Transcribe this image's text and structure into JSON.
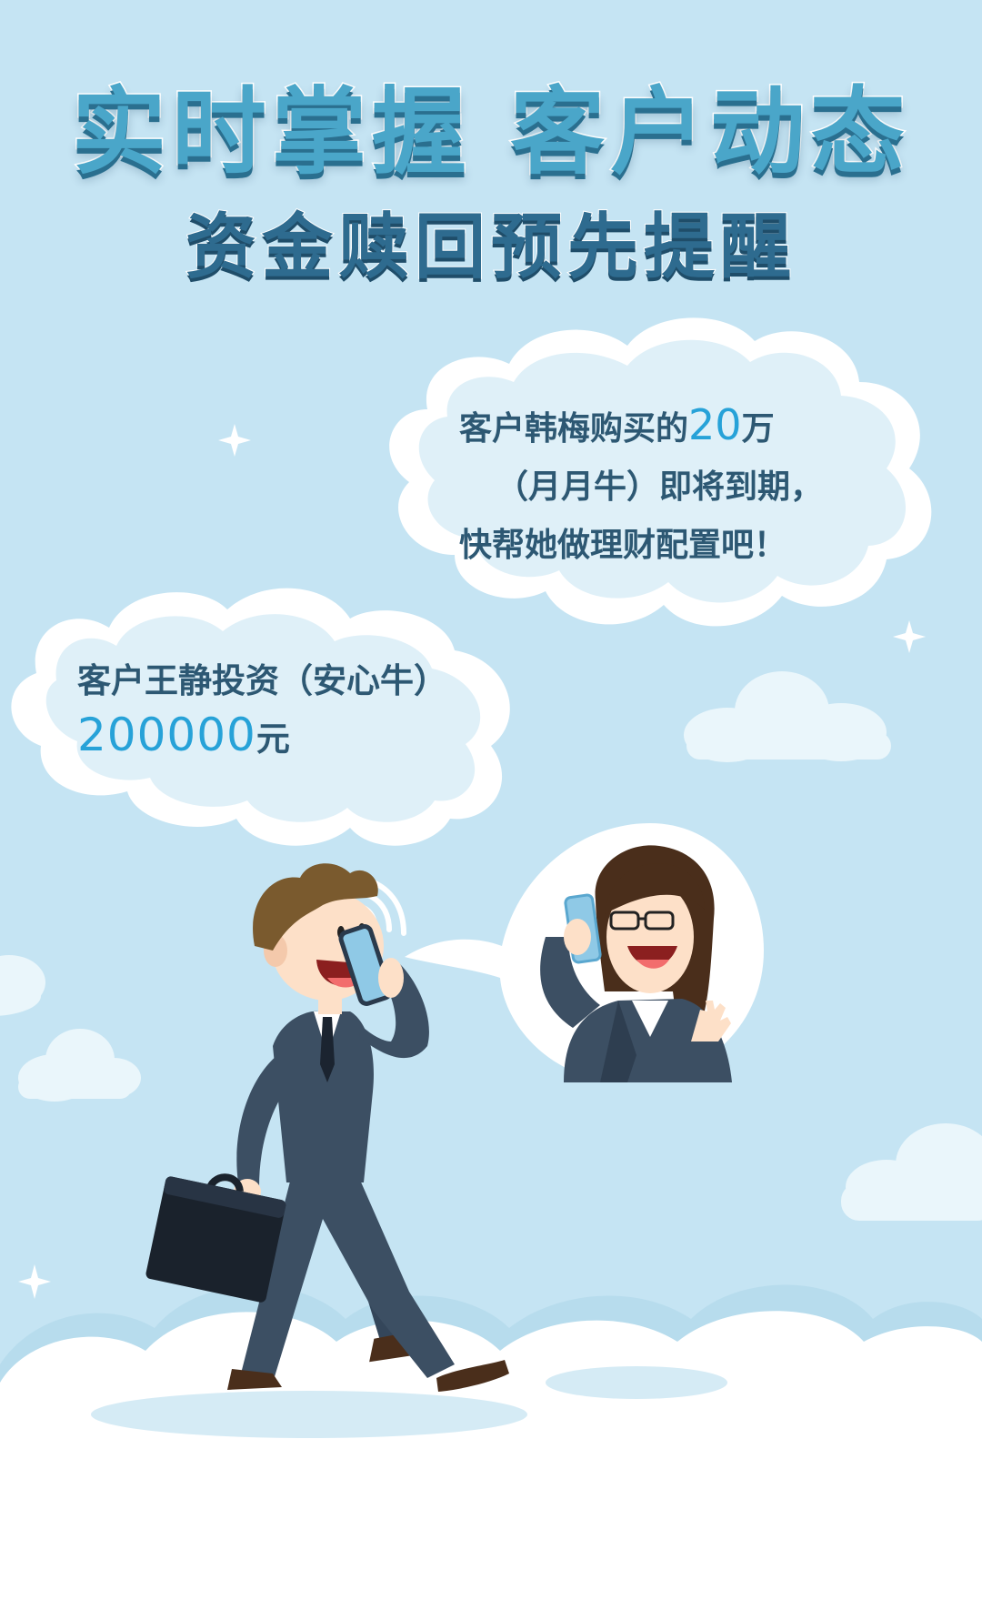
{
  "headline": {
    "title": "实时掌握 客户动态",
    "subtitle": "资金赎回预先提醒"
  },
  "bubble_maturity": {
    "line1_prefix": "客户韩梅购买的",
    "line1_amount": "20",
    "line1_suffix": "万",
    "line2": "（月月牛）即将到期，",
    "line3": "快帮她做理财配置吧！"
  },
  "bubble_investment": {
    "line1": "客户王静投资（安心牛）",
    "amount": "200000",
    "unit": "元"
  },
  "colors": {
    "background": "#c5e4f3",
    "title": "#4aa6c9",
    "subtitle": "#2e6b8f",
    "body_text": "#2d5873",
    "highlight": "#27a2d8",
    "suit": "#3c4f63"
  },
  "icons": [
    "sparkle-icon",
    "phone-signal-icon",
    "briefcase-icon"
  ]
}
